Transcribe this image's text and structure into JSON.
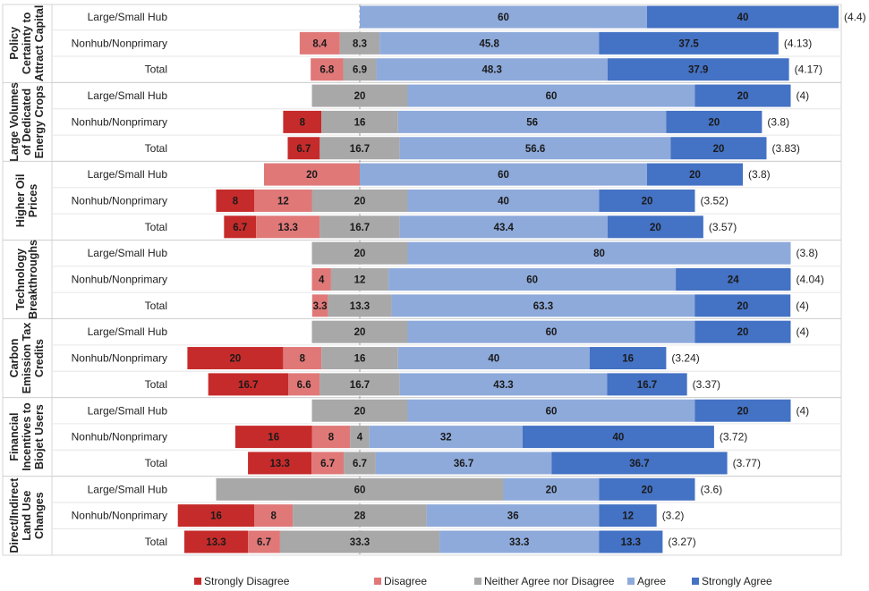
{
  "chart_data": {
    "type": "bar",
    "orientation": "horizontal",
    "stacking": "diverging",
    "title": "",
    "xlabel": "",
    "ylabel": "",
    "xlim": [
      -40,
      100
    ],
    "grid": false,
    "legend_placement": "bottom",
    "legend": [
      {
        "name": "Strongly Disagree",
        "color": "#c62b2b"
      },
      {
        "name": "Disagree",
        "color": "#e07878"
      },
      {
        "name": "Neither Agree nor Disagree",
        "color": "#a8a8a8"
      },
      {
        "name": "Agree",
        "color": "#8eaadb"
      },
      {
        "name": "Strongly Agree",
        "color": "#4472c4"
      }
    ],
    "groups": [
      {
        "name": "Policy Certainty to Attract Capital",
        "lines": [
          "Policy",
          "Certainty to",
          "Attract Capital"
        ],
        "rows": [
          {
            "label": "Large/Small Hub",
            "values": [
              0,
              0,
              0,
              60,
              40
            ],
            "mean": "(4.4)"
          },
          {
            "label": "Nonhub/Nonprimary",
            "values": [
              0,
              8.4,
              8.3,
              45.8,
              37.5
            ],
            "mean": "(4.13)"
          },
          {
            "label": "Total",
            "values": [
              0,
              6.8,
              6.9,
              48.3,
              37.9
            ],
            "mean": "(4.17)"
          }
        ]
      },
      {
        "name": "Large Volumes of Dedicated Energy Crops",
        "lines": [
          "Large Volumes",
          "of Dedicated",
          "Energy Crops"
        ],
        "rows": [
          {
            "label": "Large/Small Hub",
            "values": [
              0,
              0,
              20,
              60,
              20
            ],
            "mean": "(4)"
          },
          {
            "label": "Nonhub/Nonprimary",
            "values": [
              8,
              0,
              16,
              56,
              20
            ],
            "mean": "(3.8)"
          },
          {
            "label": "Total",
            "values": [
              6.7,
              0,
              16.7,
              56.6,
              20
            ],
            "mean": "(3.83)"
          }
        ]
      },
      {
        "name": "Higher Oil Prices",
        "lines": [
          "Higher Oil",
          "Prices"
        ],
        "rows": [
          {
            "label": "Large/Small Hub",
            "values": [
              0,
              20,
              0,
              60,
              20
            ],
            "mean": "(3.8)"
          },
          {
            "label": "Nonhub/Nonprimary",
            "values": [
              8,
              12,
              20,
              40,
              20
            ],
            "mean": "(3.52)"
          },
          {
            "label": "Total",
            "values": [
              6.7,
              13.3,
              16.7,
              43.4,
              20
            ],
            "mean": "(3.57)"
          }
        ]
      },
      {
        "name": "Technology Breakthroughs",
        "lines": [
          "Technology",
          "Breakthroughs"
        ],
        "rows": [
          {
            "label": "Large/Small Hub",
            "values": [
              0,
              0,
              20,
              80,
              0
            ],
            "mean": "(3.8)"
          },
          {
            "label": "Nonhub/Nonprimary",
            "values": [
              0,
              4,
              12,
              60,
              24
            ],
            "mean": "(4.04)"
          },
          {
            "label": "Total",
            "values": [
              0,
              3.3,
              13.3,
              63.3,
              20
            ],
            "mean": "(4)"
          }
        ]
      },
      {
        "name": "Carbon Emission Tax Credits",
        "lines": [
          "Carbon",
          "Emission Tax",
          "Credits"
        ],
        "rows": [
          {
            "label": "Large/Small Hub",
            "values": [
              0,
              0,
              20,
              60,
              20
            ],
            "mean": "(4)"
          },
          {
            "label": "Nonhub/Nonprimary",
            "values": [
              20,
              8,
              16,
              40,
              16
            ],
            "mean": "(3.24)"
          },
          {
            "label": "Total",
            "values": [
              16.7,
              6.6,
              16.7,
              43.3,
              16.7
            ],
            "mean": "(3.37)"
          }
        ]
      },
      {
        "name": "Financial Incentives to Biojet Users",
        "lines": [
          "Financial",
          "Incentives to",
          "Biojet Users"
        ],
        "rows": [
          {
            "label": "Large/Small Hub",
            "values": [
              0,
              0,
              20,
              60,
              20
            ],
            "mean": "(4)"
          },
          {
            "label": "Nonhub/Nonprimary",
            "values": [
              16,
              8,
              4,
              32,
              40
            ],
            "mean": "(3.72)"
          },
          {
            "label": "Total",
            "values": [
              13.3,
              6.7,
              6.7,
              36.7,
              36.7
            ],
            "mean": "(3.77)"
          }
        ]
      },
      {
        "name": "Direct/Indirect Land Use Changes",
        "lines": [
          "Direct/Indirect",
          "Land Use",
          "Changes"
        ],
        "rows": [
          {
            "label": "Large/Small Hub",
            "values": [
              0,
              0,
              60,
              20,
              20
            ],
            "mean": "(3.6)"
          },
          {
            "label": "Nonhub/Nonprimary",
            "values": [
              16,
              8,
              28,
              36,
              12
            ],
            "mean": "(3.2)"
          },
          {
            "label": "Total",
            "values": [
              13.3,
              6.7,
              33.3,
              33.3,
              13.3
            ],
            "mean": "(3.27)"
          }
        ]
      }
    ]
  }
}
